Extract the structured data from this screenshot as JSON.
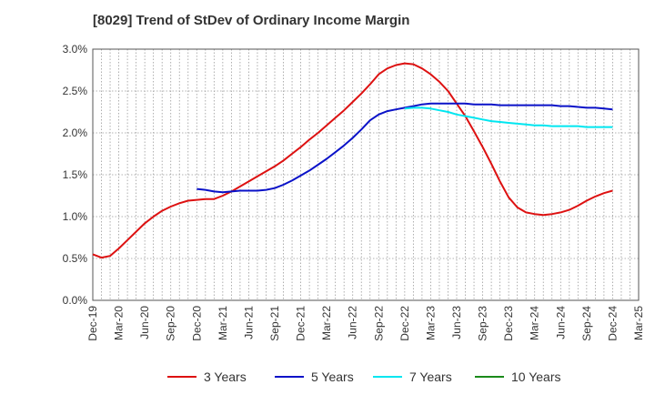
{
  "chart_data": {
    "type": "line",
    "title": "[8029]  Trend of StDev of Ordinary Income Margin",
    "xlabel": "",
    "ylabel": "",
    "x_tick_labels": [
      "Dec-19",
      "Mar-20",
      "Jun-20",
      "Sep-20",
      "Dec-20",
      "Mar-21",
      "Jun-21",
      "Sep-21",
      "Dec-21",
      "Mar-22",
      "Jun-22",
      "Sep-22",
      "Dec-22",
      "Mar-23",
      "Jun-23",
      "Sep-23",
      "Dec-23",
      "Mar-24",
      "Jun-24",
      "Sep-24",
      "Dec-24",
      "Mar-25"
    ],
    "y_tick_labels": [
      "0.0%",
      "0.5%",
      "1.0%",
      "1.5%",
      "2.0%",
      "2.5%",
      "3.0%"
    ],
    "ylim": [
      0,
      3.0
    ],
    "y_unit": "%",
    "grid": true,
    "legend_position": "bottom",
    "series": [
      {
        "name": "3 Years",
        "color": "#dd1111",
        "points": [
          [
            "Dec-19",
            0.55
          ],
          [
            "Jan-20",
            0.51
          ],
          [
            "Feb-20",
            0.53
          ],
          [
            "Mar-20",
            0.62
          ],
          [
            "Apr-20",
            0.72
          ],
          [
            "May-20",
            0.82
          ],
          [
            "Jun-20",
            0.92
          ],
          [
            "Jul-20",
            1.0
          ],
          [
            "Aug-20",
            1.07
          ],
          [
            "Sep-20",
            1.12
          ],
          [
            "Oct-20",
            1.16
          ],
          [
            "Nov-20",
            1.19
          ],
          [
            "Dec-20",
            1.2
          ],
          [
            "Jan-21",
            1.21
          ],
          [
            "Feb-21",
            1.21
          ],
          [
            "Mar-21",
            1.25
          ],
          [
            "Apr-21",
            1.3
          ],
          [
            "May-21",
            1.36
          ],
          [
            "Jun-21",
            1.42
          ],
          [
            "Jul-21",
            1.48
          ],
          [
            "Aug-21",
            1.54
          ],
          [
            "Sep-21",
            1.6
          ],
          [
            "Oct-21",
            1.67
          ],
          [
            "Nov-21",
            1.75
          ],
          [
            "Dec-21",
            1.83
          ],
          [
            "Jan-22",
            1.92
          ],
          [
            "Feb-22",
            2.0
          ],
          [
            "Mar-22",
            2.09
          ],
          [
            "Apr-22",
            2.18
          ],
          [
            "May-22",
            2.27
          ],
          [
            "Jun-22",
            2.37
          ],
          [
            "Jul-22",
            2.47
          ],
          [
            "Aug-22",
            2.58
          ],
          [
            "Sep-22",
            2.7
          ],
          [
            "Oct-22",
            2.77
          ],
          [
            "Nov-22",
            2.81
          ],
          [
            "Dec-22",
            2.83
          ],
          [
            "Jan-23",
            2.82
          ],
          [
            "Feb-23",
            2.77
          ],
          [
            "Mar-23",
            2.7
          ],
          [
            "Apr-23",
            2.61
          ],
          [
            "May-23",
            2.5
          ],
          [
            "Jun-23",
            2.35
          ],
          [
            "Jul-23",
            2.2
          ],
          [
            "Aug-23",
            2.02
          ],
          [
            "Sep-23",
            1.83
          ],
          [
            "Oct-23",
            1.63
          ],
          [
            "Nov-23",
            1.42
          ],
          [
            "Dec-23",
            1.23
          ],
          [
            "Jan-24",
            1.11
          ],
          [
            "Feb-24",
            1.05
          ],
          [
            "Mar-24",
            1.03
          ],
          [
            "Apr-24",
            1.02
          ],
          [
            "May-24",
            1.03
          ],
          [
            "Jun-24",
            1.05
          ],
          [
            "Jul-24",
            1.08
          ],
          [
            "Aug-24",
            1.13
          ],
          [
            "Sep-24",
            1.19
          ],
          [
            "Oct-24",
            1.24
          ],
          [
            "Nov-24",
            1.28
          ],
          [
            "Dec-24",
            1.31
          ]
        ]
      },
      {
        "name": "5 Years",
        "color": "#0a12c8",
        "points": [
          [
            "Dec-20",
            1.33
          ],
          [
            "Jan-21",
            1.32
          ],
          [
            "Feb-21",
            1.3
          ],
          [
            "Mar-21",
            1.29
          ],
          [
            "Apr-21",
            1.3
          ],
          [
            "May-21",
            1.31
          ],
          [
            "Jun-21",
            1.31
          ],
          [
            "Jul-21",
            1.31
          ],
          [
            "Aug-21",
            1.32
          ],
          [
            "Sep-21",
            1.34
          ],
          [
            "Oct-21",
            1.38
          ],
          [
            "Nov-21",
            1.43
          ],
          [
            "Dec-21",
            1.49
          ],
          [
            "Jan-22",
            1.55
          ],
          [
            "Feb-22",
            1.62
          ],
          [
            "Mar-22",
            1.69
          ],
          [
            "Apr-22",
            1.77
          ],
          [
            "May-22",
            1.85
          ],
          [
            "Jun-22",
            1.94
          ],
          [
            "Jul-22",
            2.04
          ],
          [
            "Aug-22",
            2.15
          ],
          [
            "Sep-22",
            2.22
          ],
          [
            "Oct-22",
            2.26
          ],
          [
            "Nov-22",
            2.28
          ],
          [
            "Dec-22",
            2.3
          ],
          [
            "Jan-23",
            2.32
          ],
          [
            "Feb-23",
            2.34
          ],
          [
            "Mar-23",
            2.35
          ],
          [
            "Apr-23",
            2.35
          ],
          [
            "May-23",
            2.35
          ],
          [
            "Jun-23",
            2.35
          ],
          [
            "Jul-23",
            2.35
          ],
          [
            "Aug-23",
            2.34
          ],
          [
            "Sep-23",
            2.34
          ],
          [
            "Oct-23",
            2.34
          ],
          [
            "Nov-23",
            2.33
          ],
          [
            "Dec-23",
            2.33
          ],
          [
            "Jan-24",
            2.33
          ],
          [
            "Feb-24",
            2.33
          ],
          [
            "Mar-24",
            2.33
          ],
          [
            "Apr-24",
            2.33
          ],
          [
            "May-24",
            2.33
          ],
          [
            "Jun-24",
            2.32
          ],
          [
            "Jul-24",
            2.32
          ],
          [
            "Aug-24",
            2.31
          ],
          [
            "Sep-24",
            2.3
          ],
          [
            "Oct-24",
            2.3
          ],
          [
            "Nov-24",
            2.29
          ],
          [
            "Dec-24",
            2.28
          ]
        ]
      },
      {
        "name": "7 Years",
        "color": "#00e6f0",
        "points": [
          [
            "Dec-22",
            2.29
          ],
          [
            "Jan-23",
            2.3
          ],
          [
            "Feb-23",
            2.3
          ],
          [
            "Mar-23",
            2.29
          ],
          [
            "Apr-23",
            2.27
          ],
          [
            "May-23",
            2.25
          ],
          [
            "Jun-23",
            2.22
          ],
          [
            "Jul-23",
            2.2
          ],
          [
            "Aug-23",
            2.18
          ],
          [
            "Sep-23",
            2.16
          ],
          [
            "Oct-23",
            2.14
          ],
          [
            "Nov-23",
            2.13
          ],
          [
            "Dec-23",
            2.12
          ],
          [
            "Jan-24",
            2.11
          ],
          [
            "Feb-24",
            2.1
          ],
          [
            "Mar-24",
            2.09
          ],
          [
            "Apr-24",
            2.09
          ],
          [
            "May-24",
            2.08
          ],
          [
            "Jun-24",
            2.08
          ],
          [
            "Jul-24",
            2.08
          ],
          [
            "Aug-24",
            2.08
          ],
          [
            "Sep-24",
            2.07
          ],
          [
            "Oct-24",
            2.07
          ],
          [
            "Nov-24",
            2.07
          ],
          [
            "Dec-24",
            2.07
          ]
        ]
      },
      {
        "name": "10 Years",
        "color": "#1a8a1a",
        "points": []
      }
    ]
  }
}
